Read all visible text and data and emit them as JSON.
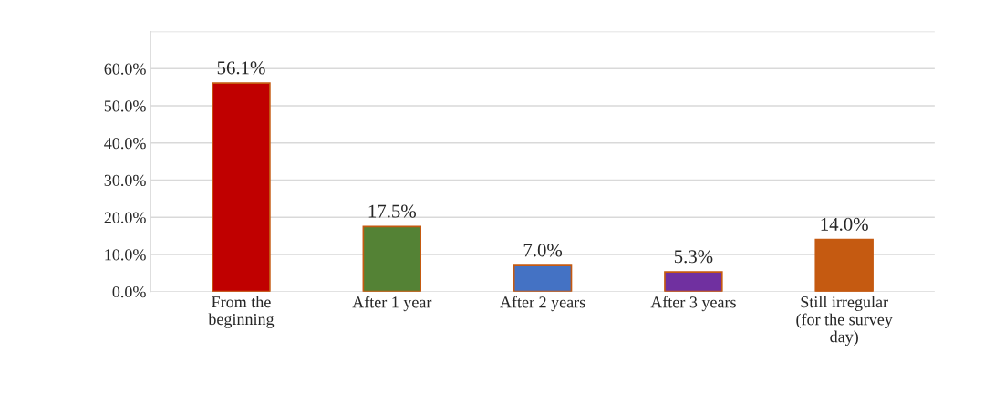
{
  "chart_data": {
    "type": "bar",
    "categories": [
      "From the\nbeginning",
      "After 1 year",
      "After 2 years",
      "After 3 years",
      "Still irregular\n(for the survey\nday)"
    ],
    "values": [
      56.1,
      17.5,
      7.0,
      5.3,
      14.0
    ],
    "colors": [
      "#c00000",
      "#548235",
      "#4472c4",
      "#7030a0",
      "#c55a11"
    ],
    "value_labels": [
      "56.1%",
      "17.5%",
      "7.0%",
      "5.3%",
      "14.0%"
    ],
    "ylim": [
      0,
      70
    ],
    "yticks": [
      {
        "value": 0,
        "label": "0.0%"
      },
      {
        "value": 10,
        "label": "10.0%"
      },
      {
        "value": 20,
        "label": "20.0%"
      },
      {
        "value": 30,
        "label": "30.0%"
      },
      {
        "value": 40,
        "label": "40.0%"
      },
      {
        "value": 50,
        "label": "50.0%"
      },
      {
        "value": 60,
        "label": "60.0%"
      },
      {
        "value": 70,
        "label": null
      }
    ],
    "grid": "y"
  }
}
